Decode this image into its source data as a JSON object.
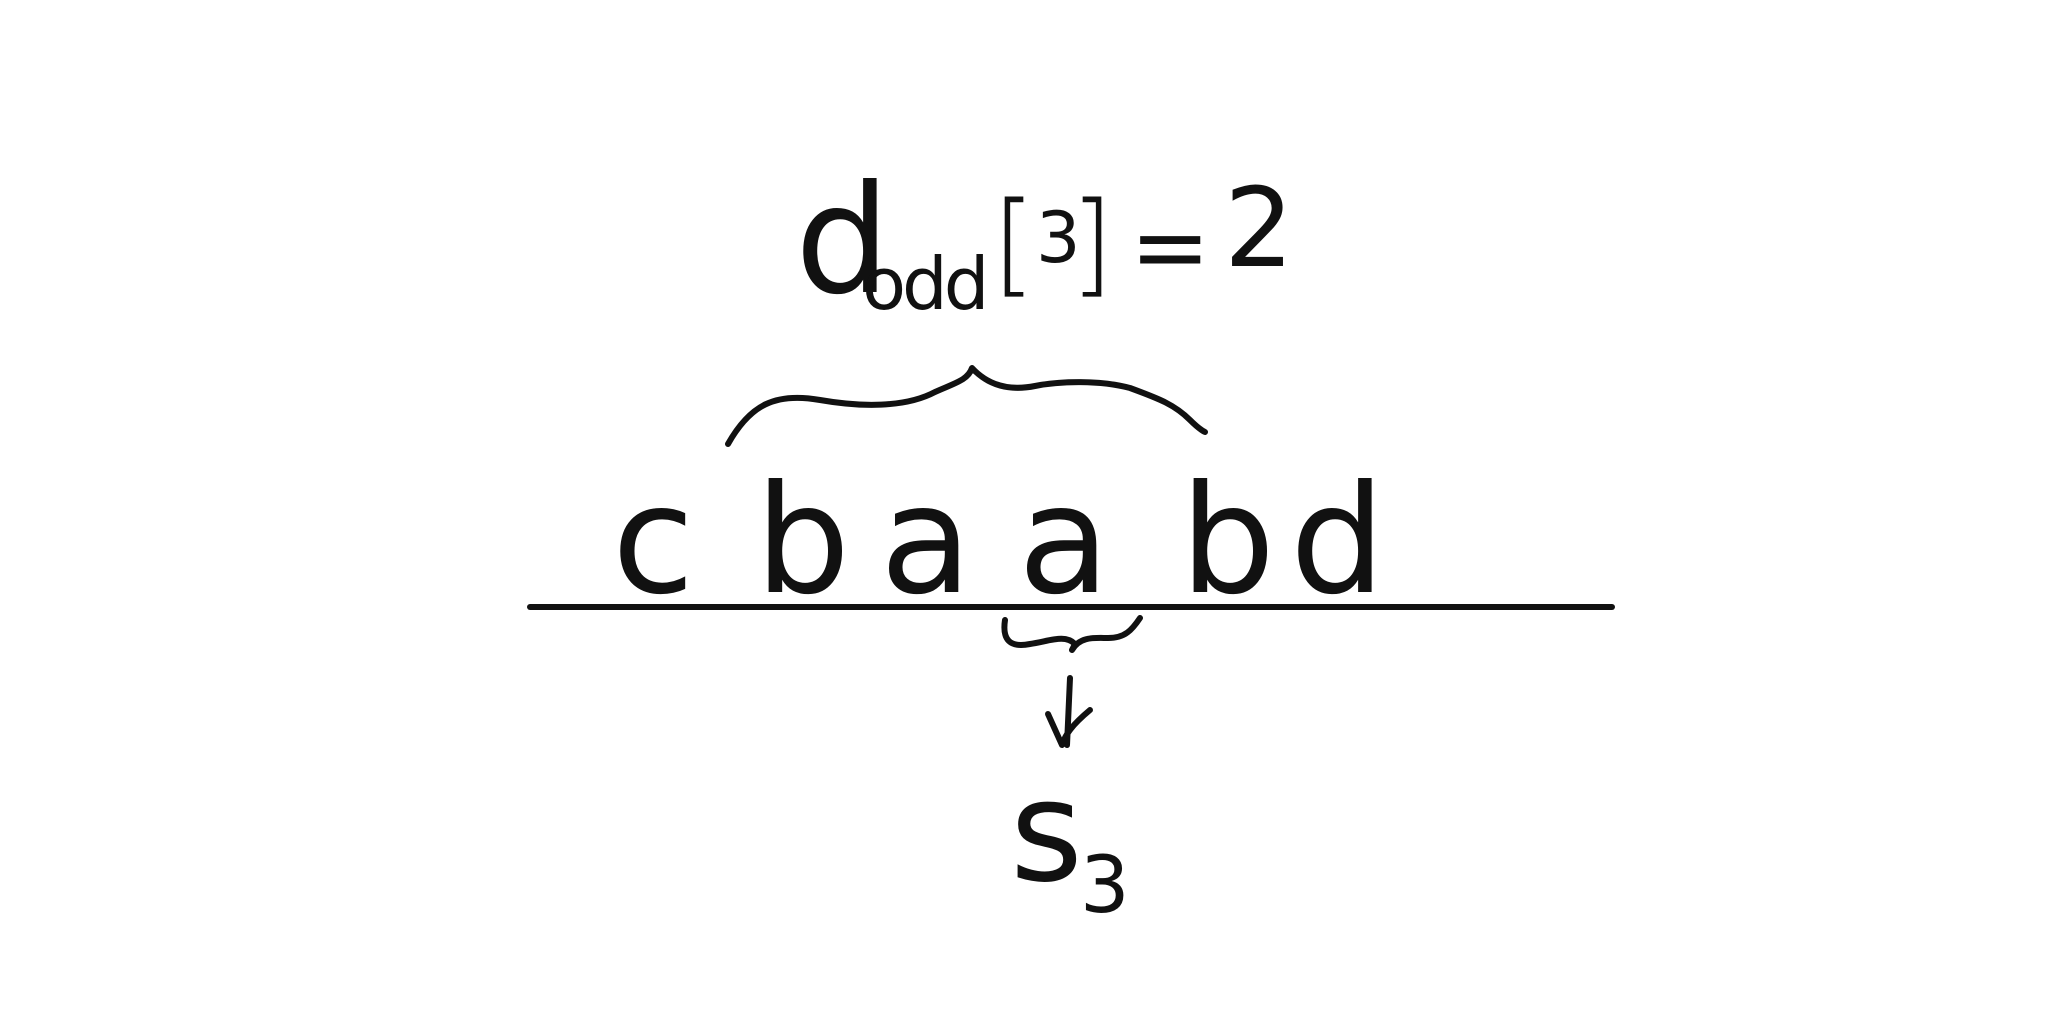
{
  "formula": {
    "d": "d",
    "subscript": "odd",
    "bracket_open": "[",
    "index": "3",
    "bracket_close": "]",
    "equals": "=",
    "value": "2"
  },
  "string": {
    "chars": [
      "c",
      "b",
      "a",
      "a",
      "b",
      "d"
    ]
  },
  "result": {
    "s": "s",
    "subscript": "3"
  },
  "colors": {
    "ink": "#111111",
    "background": "#ffffff"
  }
}
